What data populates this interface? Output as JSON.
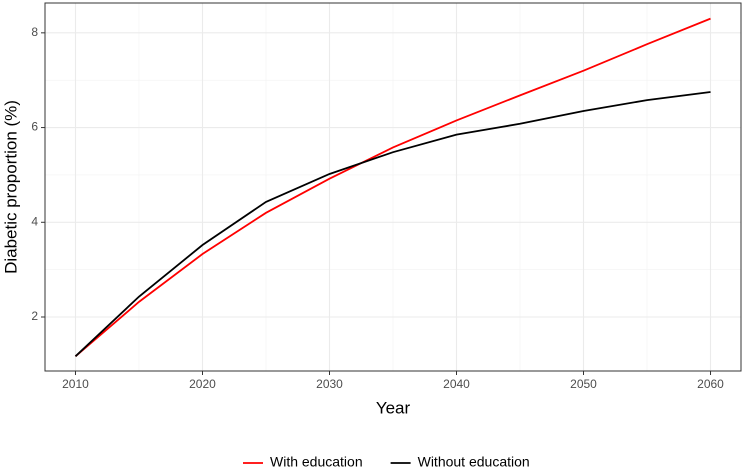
{
  "chart_data": {
    "type": "line",
    "x_label": "Year",
    "y_label": "Diabetic proportion (%)",
    "x": [
      2010,
      2015,
      2020,
      2025,
      2030,
      2035,
      2040,
      2045,
      2050,
      2055,
      2060
    ],
    "series": [
      {
        "name": "With education",
        "color": "#ff0000",
        "values": [
          1.17,
          2.32,
          3.33,
          4.2,
          4.92,
          5.58,
          6.15,
          6.68,
          7.2,
          7.76,
          8.3
        ]
      },
      {
        "name": "Without education",
        "color": "#000000",
        "values": [
          1.17,
          2.43,
          3.52,
          4.43,
          5.02,
          5.48,
          5.85,
          6.08,
          6.35,
          6.58,
          6.75
        ]
      }
    ],
    "xlim": [
      2007.6,
      2062.4
    ],
    "ylim": [
      0.86,
      8.63
    ],
    "xticks": [
      2010,
      2020,
      2030,
      2040,
      2050,
      2060
    ],
    "yticks": [
      2,
      4,
      6,
      8
    ],
    "minor_xticks": [
      2015,
      2025,
      2035,
      2045,
      2055
    ],
    "minor_yticks": [
      3,
      5,
      7
    ],
    "grid": true,
    "legend": "bottom"
  }
}
